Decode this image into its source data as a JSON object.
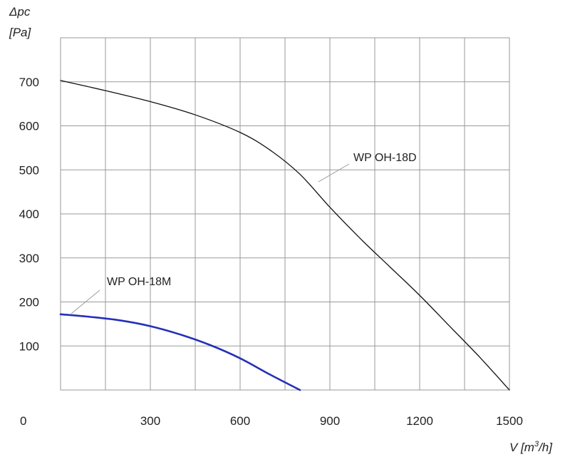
{
  "chart_data": {
    "type": "line",
    "title": "",
    "ylabel": {
      "symbol": "Δpc",
      "unit": "[Pa]"
    },
    "xlabel": {
      "prefix": "V [m",
      "sup": "3",
      "suffix": "/h]"
    },
    "origin_label": "0",
    "xlim": [
      0,
      1500
    ],
    "ylim": [
      0,
      800
    ],
    "x_ticks": [
      300,
      600,
      900,
      1200,
      1500
    ],
    "y_ticks": [
      100,
      200,
      300,
      400,
      500,
      600,
      700
    ],
    "x_grid_step": 150,
    "y_grid_step": 100,
    "grid": true,
    "series": [
      {
        "name": "WP OH-18D",
        "color": "#111111",
        "x": [
          0,
          150,
          300,
          450,
          600,
          700,
          800,
          900,
          1000,
          1100,
          1200,
          1300,
          1400,
          1500
        ],
        "y": [
          703,
          680,
          655,
          625,
          585,
          545,
          490,
          415,
          345,
          280,
          215,
          145,
          75,
          0
        ]
      },
      {
        "name": "WP OH-18M",
        "color": "#2430b8",
        "x": [
          0,
          100,
          200,
          300,
          400,
          500,
          600,
          700,
          800
        ],
        "y": [
          172,
          166,
          158,
          145,
          126,
          102,
          72,
          35,
          0
        ]
      }
    ]
  }
}
